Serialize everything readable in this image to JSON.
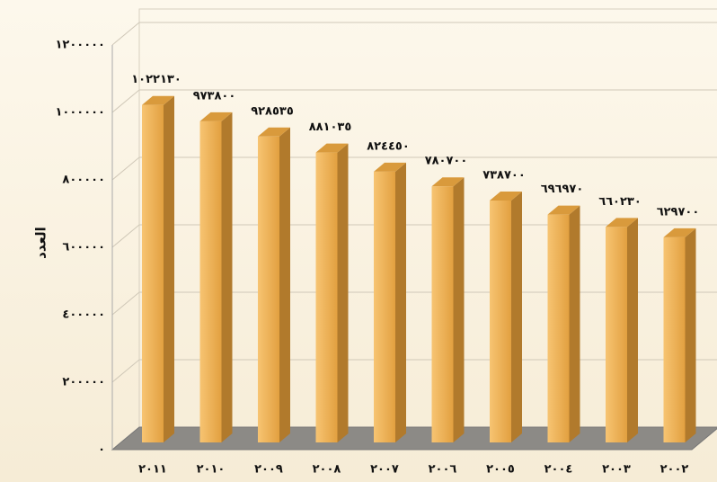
{
  "chart_data": {
    "type": "bar3d",
    "y_label": "العدد",
    "categories": [
      "٢٠١١",
      "٢٠١٠",
      "٢٠٠٩",
      "٢٠٠٨",
      "٢٠٠٧",
      "٢٠٠٦",
      "٢٠٠٥",
      "٢٠٠٤",
      "٢٠٠٣",
      "٢٠٠٢"
    ],
    "values": [
      1022130,
      973800,
      928535,
      881035,
      824450,
      780700,
      738700,
      696970,
      660230,
      629700
    ],
    "value_labels": [
      "١٠٢٢١٣٠",
      "٩٧٣٨٠٠",
      "٩٢٨٥٣٥",
      "٨٨١٠٣٥",
      "٨٢٤٤٥٠",
      "٧٨٠٧٠٠",
      "٧٣٨٧٠٠",
      "٦٩٦٩٧٠",
      "٦٦٠٢٣٠",
      "٦٢٩٧٠٠"
    ],
    "color": "#e8a84a",
    "ylim": [
      0,
      1200000
    ],
    "yticks": [
      {
        "value": 0,
        "label": "٠"
      },
      {
        "value": 200000,
        "label": "٢٠٠٠٠٠"
      },
      {
        "value": 400000,
        "label": "٤٠٠٠٠٠"
      },
      {
        "value": 600000,
        "label": "٦٠٠٠٠٠"
      },
      {
        "value": 800000,
        "label": "٨٠٠٠٠٠"
      },
      {
        "value": 1000000,
        "label": "١٠٠٠٠٠٠"
      },
      {
        "value": 1200000,
        "label": "١٢٠٠٠٠٠"
      }
    ],
    "grid": true
  }
}
